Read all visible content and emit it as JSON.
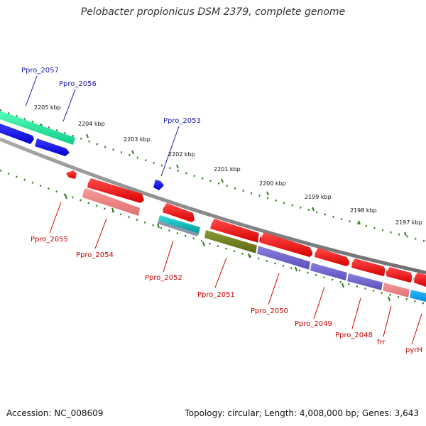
{
  "title": "Pelobacter propionicus DSM 2379, complete genome",
  "footer": {
    "accession": "Accession: NC_008609",
    "stats": "Topology: circular; Length: 4,008,000 bp; Genes: 3,643"
  },
  "colors": {
    "backbone": "#808080",
    "tick": "#2e7d1e",
    "forward_label": "#1a1aaa",
    "reverse_label": "#cc0000"
  },
  "kbp_labels": [
    "2205 kbp",
    "2204 kbp",
    "2203 kbp",
    "2202 kbp",
    "2201 kbp",
    "2200 kbp",
    "2199 kbp",
    "2198 kbp",
    "2197 kbp"
  ],
  "genes": [
    {
      "label": "Ppro_2057",
      "strand": "forward",
      "color": "#22ee99"
    },
    {
      "label": "Ppro_2056",
      "strand": "forward",
      "color": "#1111ee"
    },
    {
      "label": "Ppro_2053",
      "strand": "forward",
      "color": "#1111ee"
    },
    {
      "label": "Ppro_2055",
      "strand": "reverse",
      "color": "#ee1111"
    },
    {
      "label": "Ppro_2054",
      "strand": "reverse",
      "color": "#ee1111"
    },
    {
      "label": "Ppro_2052",
      "strand": "reverse",
      "color": "#ee1111"
    },
    {
      "label": "Ppro_2051",
      "strand": "reverse",
      "color": "#ee1111"
    },
    {
      "label": "Ppro_2050",
      "strand": "reverse",
      "color": "#ee1111"
    },
    {
      "label": "Ppro_2049",
      "strand": "reverse",
      "color": "#ee1111"
    },
    {
      "label": "Ppro_2048",
      "strand": "reverse",
      "color": "#ee1111"
    },
    {
      "label": "frr",
      "strand": "reverse",
      "color": "#ee1111"
    },
    {
      "label": "pyrH",
      "strand": "reverse",
      "color": "#ee1111"
    }
  ]
}
